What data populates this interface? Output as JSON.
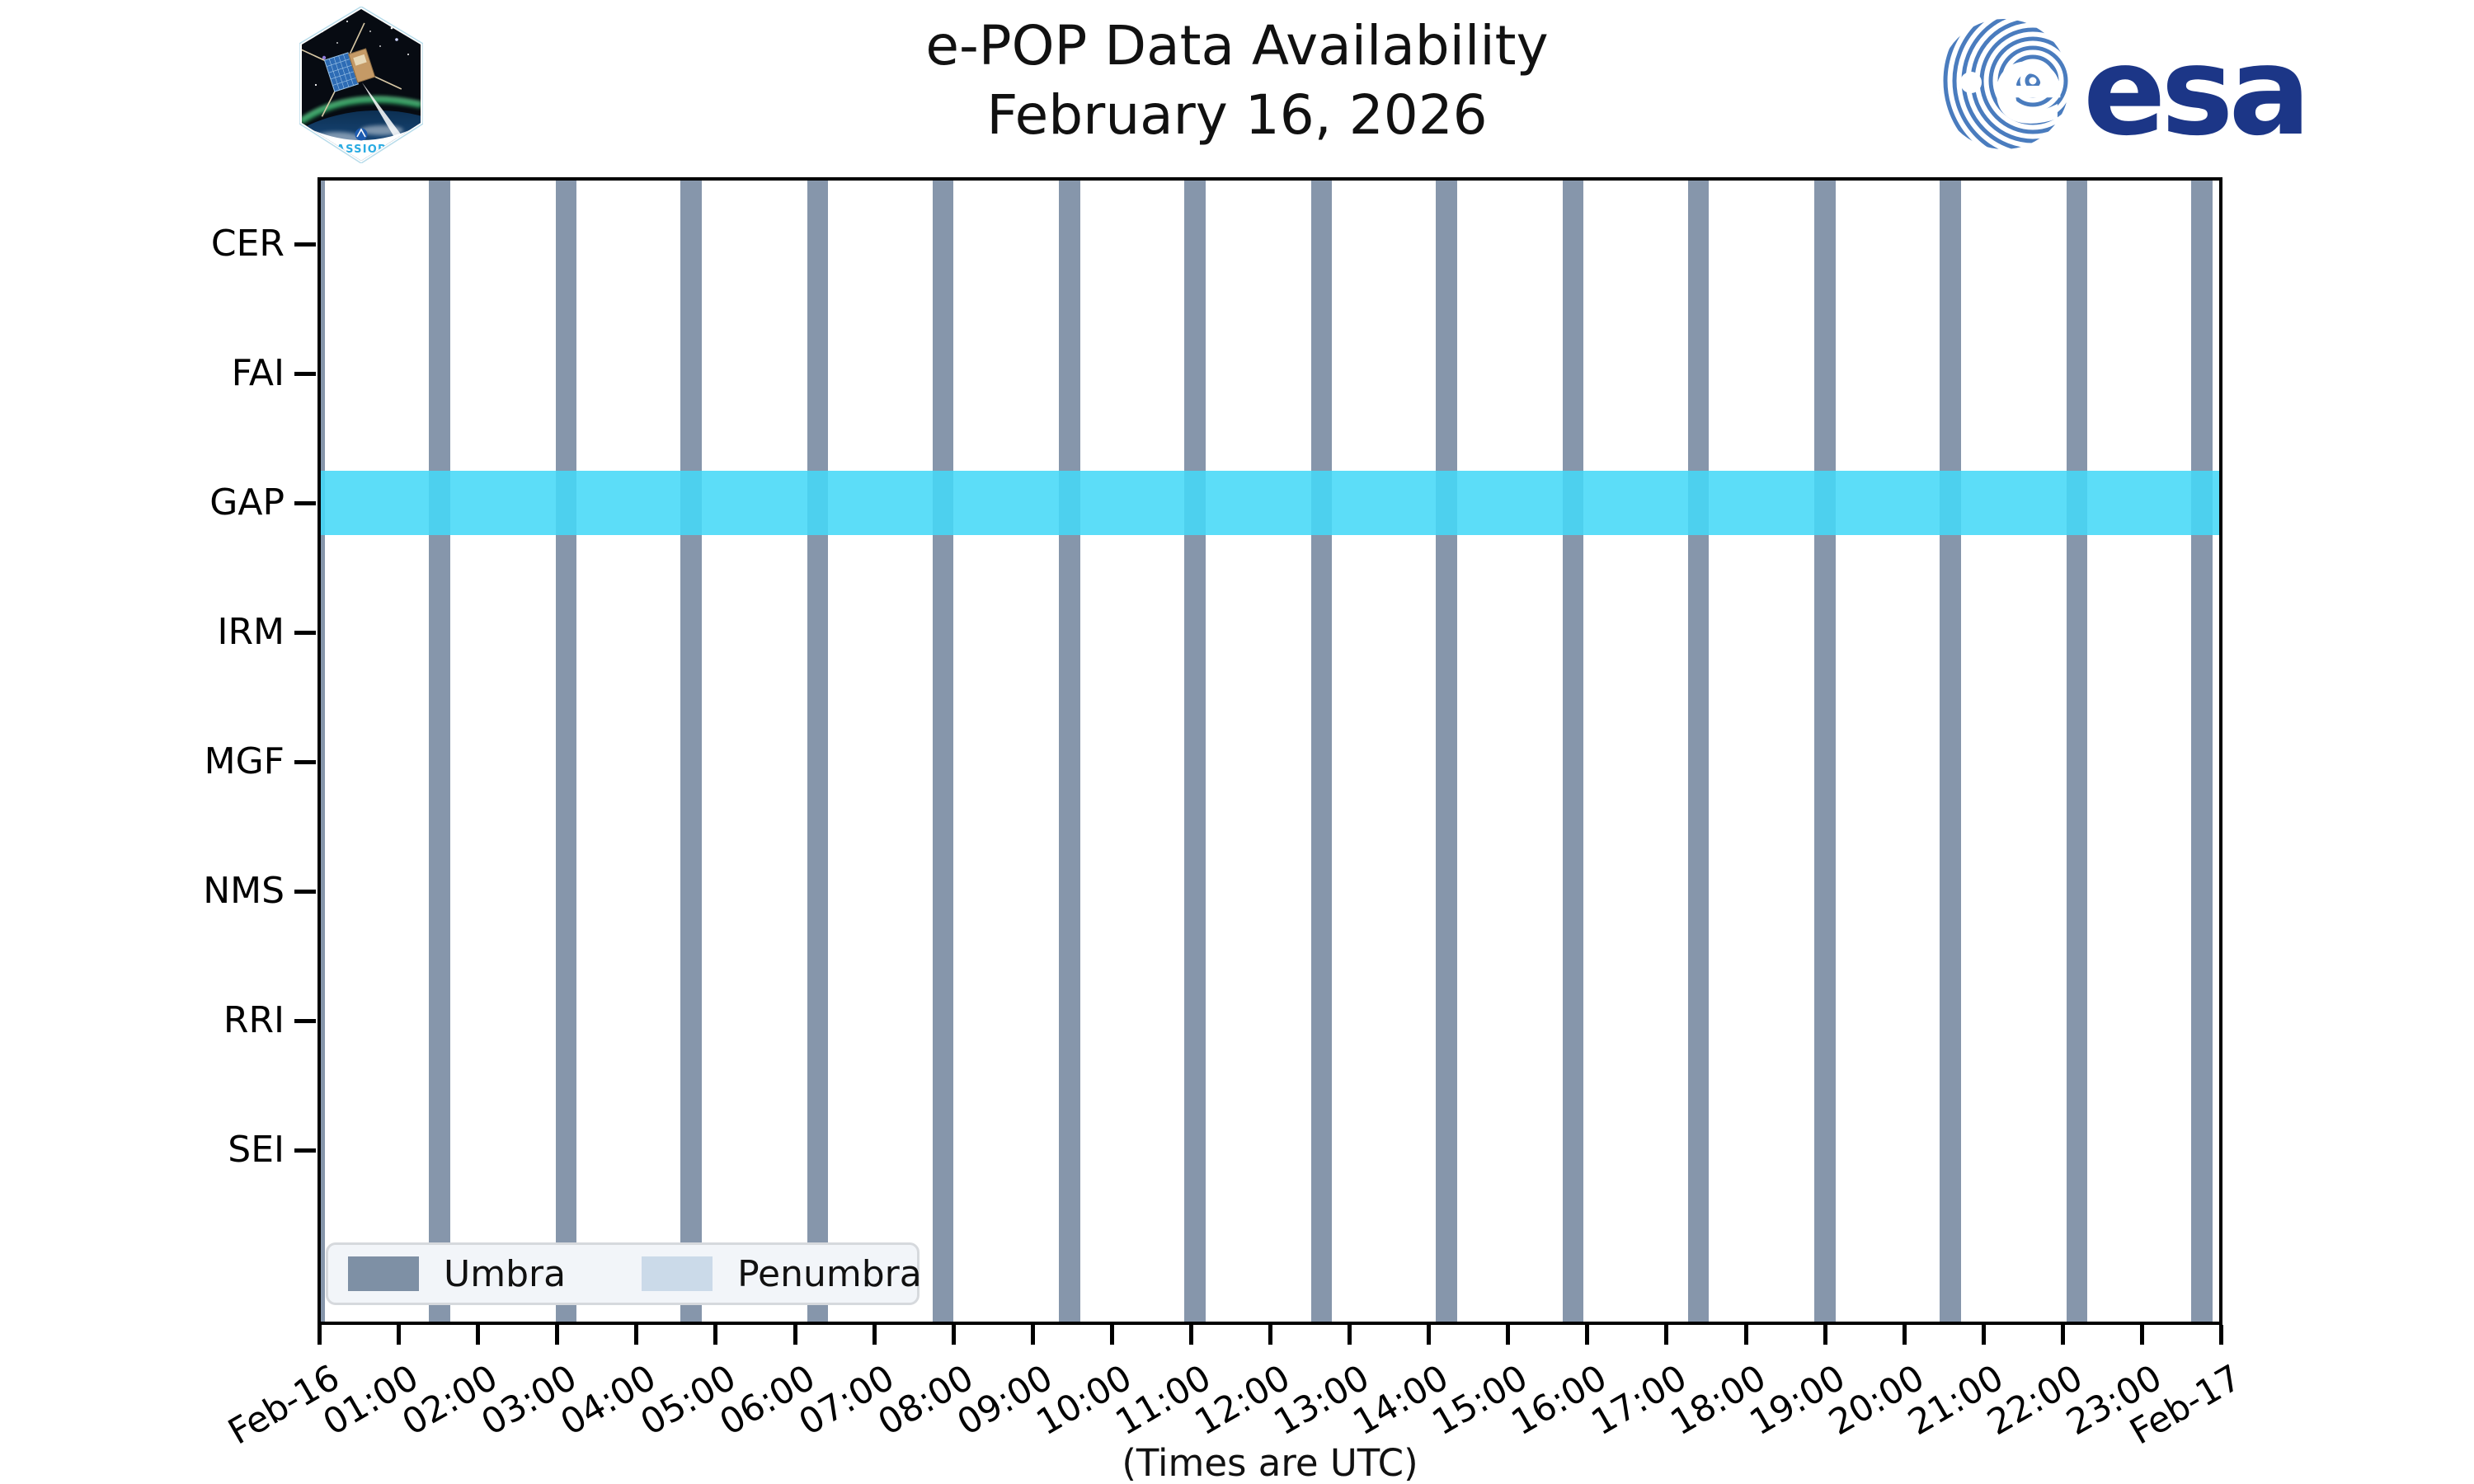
{
  "title": {
    "line1": "e-POP Data Availability",
    "line2": "February 16, 2026"
  },
  "logos": {
    "cassiope": {
      "label": "CASSIOPE"
    },
    "esa": {
      "globe_letter": "e",
      "wordmark": "esa"
    }
  },
  "chart_data": {
    "type": "timeline-availability",
    "title": "e-POP Data Availability",
    "subtitle": "February 16, 2026",
    "x_axis_note": "(Times are UTC)",
    "x_range_minutes": [
      0,
      1440
    ],
    "x_tick_labels": [
      "Feb-16",
      "01:00",
      "02:00",
      "03:00",
      "04:00",
      "05:00",
      "06:00",
      "07:00",
      "08:00",
      "09:00",
      "10:00",
      "11:00",
      "12:00",
      "13:00",
      "14:00",
      "15:00",
      "16:00",
      "17:00",
      "18:00",
      "19:00",
      "20:00",
      "21:00",
      "22:00",
      "23:00",
      "Feb-17"
    ],
    "instruments": [
      "CER",
      "FAI",
      "GAP",
      "IRM",
      "MGF",
      "NMS",
      "RRI",
      "SEI"
    ],
    "legend": {
      "position": "lower-left",
      "entries": [
        {
          "label": "Umbra",
          "color": "#7e90a5"
        },
        {
          "label": "Penumbra",
          "color": "#cbdae9"
        }
      ]
    },
    "umbra_intervals_min": [
      [
        -13,
        3
      ],
      [
        82,
        98
      ],
      [
        178,
        194
      ],
      [
        273,
        289
      ],
      [
        369,
        385
      ],
      [
        464,
        480
      ],
      [
        560,
        576
      ],
      [
        655,
        671
      ],
      [
        751,
        767
      ],
      [
        846,
        862
      ],
      [
        942,
        958
      ],
      [
        1037,
        1053
      ],
      [
        1133,
        1149
      ],
      [
        1228,
        1244
      ],
      [
        1324,
        1340
      ],
      [
        1419,
        1435
      ]
    ],
    "availability_bands": [
      {
        "instrument": "GAP",
        "start_min": 0,
        "end_min": 1440,
        "color": "rgba(70,216,247,0.88)"
      }
    ],
    "grid": false
  },
  "colors": {
    "umbra_bar": "#8696ab",
    "axis": "#000000",
    "legend_bg": "#f2f5f9",
    "esa_navy": "#1c3687",
    "esa_stripe": "#4a7cbe",
    "cassiope_cyan": "#29abe2"
  }
}
